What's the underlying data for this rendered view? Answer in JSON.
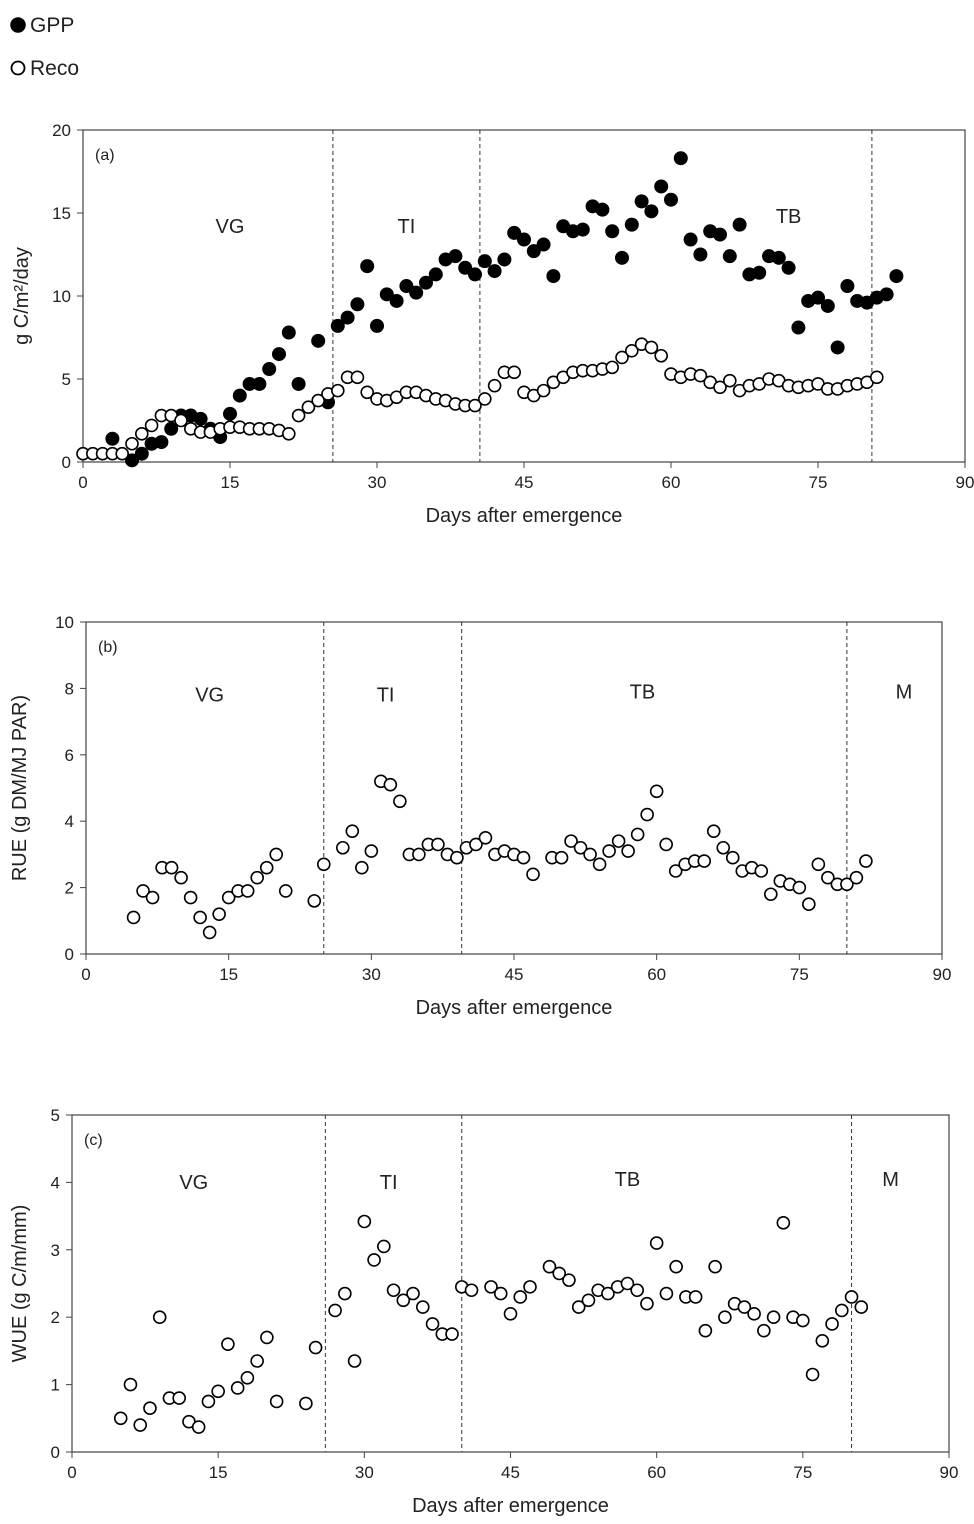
{
  "legend": {
    "items": [
      {
        "label": "GPP",
        "marker": "filled"
      },
      {
        "label": "Reco",
        "marker": "open"
      }
    ]
  },
  "colors": {
    "marker": "#000000",
    "axis": "#444444",
    "divider": "#333333"
  },
  "chart_data": [
    {
      "type": "scatter",
      "panel_tag": "(a)",
      "xlabel": "Days after emergence",
      "ylabel": "g C/m²/day",
      "xlim": [
        0,
        90
      ],
      "ylim": [
        0,
        20
      ],
      "xticks": [
        0,
        15,
        30,
        45,
        60,
        75,
        90
      ],
      "yticks": [
        0,
        5,
        10,
        15,
        20
      ],
      "grid": false,
      "legend_position": "top-left, above panel (a)",
      "phase_dividers": [
        25.5,
        40.5,
        80.5
      ],
      "phase_labels": [
        {
          "text": "VG",
          "x": 15,
          "y": 13.8
        },
        {
          "text": "TI",
          "x": 33,
          "y": 13.8
        },
        {
          "text": "TB",
          "x": 72,
          "y": 14.4
        }
      ],
      "series": [
        {
          "name": "GPP",
          "marker": "filled",
          "x": [
            3,
            5,
            6,
            7,
            8,
            9,
            10,
            11,
            12,
            13,
            14,
            15,
            16,
            17,
            18,
            19,
            20,
            21,
            22,
            24,
            25,
            26,
            27,
            28,
            29,
            30,
            31,
            32,
            33,
            34,
            35,
            36,
            37,
            38,
            39,
            40,
            41,
            42,
            43,
            44,
            45,
            46,
            47,
            48,
            49,
            50,
            51,
            52,
            53,
            54,
            55,
            56,
            57,
            58,
            59,
            60,
            61,
            62,
            63,
            64,
            65,
            66,
            67,
            68,
            69,
            70,
            71,
            72,
            73,
            74,
            75,
            76,
            77,
            78,
            79,
            80,
            81,
            82,
            83
          ],
          "y": [
            1.4,
            0.1,
            0.5,
            1.1,
            1.2,
            2.0,
            2.8,
            2.8,
            2.6,
            2.0,
            1.5,
            2.9,
            4.0,
            4.7,
            4.7,
            5.6,
            6.5,
            7.8,
            4.7,
            7.3,
            3.6,
            8.2,
            8.7,
            9.5,
            11.8,
            8.2,
            10.1,
            9.7,
            10.6,
            10.2,
            10.8,
            11.3,
            12.2,
            12.4,
            11.7,
            11.3,
            12.1,
            11.5,
            12.2,
            13.8,
            13.4,
            12.7,
            13.1,
            11.2,
            14.2,
            13.9,
            14.0,
            15.4,
            15.2,
            13.9,
            12.3,
            14.3,
            15.7,
            15.1,
            16.6,
            15.8,
            18.3,
            13.4,
            12.5,
            13.9,
            13.7,
            12.4,
            14.3,
            11.3,
            11.4,
            12.4,
            12.3,
            11.7,
            8.1,
            9.7,
            9.9,
            9.4,
            6.9,
            10.6,
            9.7,
            9.6,
            9.9,
            10.1,
            11.2
          ]
        },
        {
          "name": "Reco",
          "marker": "open",
          "x": [
            0,
            1,
            2,
            3,
            4,
            5,
            6,
            7,
            8,
            9,
            10,
            11,
            12,
            13,
            14,
            15,
            16,
            17,
            18,
            19,
            20,
            21,
            22,
            23,
            24,
            25,
            26,
            27,
            28,
            29,
            30,
            31,
            32,
            33,
            34,
            35,
            36,
            37,
            38,
            39,
            40,
            41,
            42,
            43,
            44,
            45,
            46,
            47,
            48,
            49,
            50,
            51,
            52,
            53,
            54,
            55,
            56,
            57,
            58,
            59,
            60,
            61,
            62,
            63,
            64,
            65,
            66,
            67,
            68,
            69,
            70,
            71,
            72,
            73,
            74,
            75,
            76,
            77,
            78,
            79,
            80,
            81
          ],
          "y": [
            0.5,
            0.5,
            0.5,
            0.5,
            0.5,
            1.1,
            1.7,
            2.2,
            2.8,
            2.8,
            2.5,
            2.0,
            1.8,
            1.8,
            2.0,
            2.1,
            2.1,
            2.0,
            2.0,
            2.0,
            1.9,
            1.7,
            2.8,
            3.3,
            3.7,
            4.1,
            4.3,
            5.1,
            5.1,
            4.2,
            3.8,
            3.7,
            3.9,
            4.2,
            4.2,
            4.0,
            3.8,
            3.7,
            3.5,
            3.4,
            3.4,
            3.8,
            4.6,
            5.4,
            5.4,
            4.2,
            4.0,
            4.3,
            4.8,
            5.1,
            5.4,
            5.5,
            5.5,
            5.6,
            5.7,
            6.3,
            6.7,
            7.1,
            6.9,
            6.4,
            5.3,
            5.1,
            5.3,
            5.2,
            4.8,
            4.5,
            4.9,
            4.3,
            4.6,
            4.7,
            5.0,
            4.9,
            4.6,
            4.5,
            4.6,
            4.7,
            4.4,
            4.4,
            4.6,
            4.7,
            4.8,
            5.1
          ]
        }
      ]
    },
    {
      "type": "scatter",
      "panel_tag": "(b)",
      "xlabel": "Days after emergence",
      "ylabel": "RUE (g DM/MJ PAR)",
      "xlim": [
        0,
        90
      ],
      "ylim": [
        0,
        10
      ],
      "xticks": [
        0,
        15,
        30,
        45,
        60,
        75,
        90
      ],
      "yticks": [
        0,
        2,
        4,
        6,
        8,
        10
      ],
      "grid": false,
      "phase_dividers": [
        25,
        39.5,
        80
      ],
      "phase_labels": [
        {
          "text": "VG",
          "x": 13,
          "y": 7.6
        },
        {
          "text": "TI",
          "x": 31.5,
          "y": 7.6
        },
        {
          "text": "TB",
          "x": 58.5,
          "y": 7.7
        },
        {
          "text": "M",
          "x": 86,
          "y": 7.7
        }
      ],
      "series": [
        {
          "name": "",
          "marker": "open",
          "x": [
            5,
            6,
            7,
            8,
            9,
            10,
            11,
            12,
            13,
            14,
            15,
            16,
            17,
            18,
            19,
            20,
            21,
            24,
            25,
            27,
            28,
            29,
            30,
            31,
            32,
            33,
            34,
            35,
            36,
            37,
            38,
            39,
            40,
            41,
            42,
            43,
            44,
            45,
            46,
            47,
            49,
            50,
            51,
            52,
            53,
            54,
            55,
            56,
            57,
            58,
            59,
            60,
            61,
            62,
            63,
            64,
            65,
            66,
            67,
            68,
            69,
            70,
            71,
            72,
            73,
            74,
            75,
            76,
            77,
            78,
            79,
            80,
            81,
            82
          ],
          "y": [
            1.1,
            1.9,
            1.7,
            2.6,
            2.6,
            2.3,
            1.7,
            1.1,
            0.65,
            1.2,
            1.7,
            1.9,
            1.9,
            2.3,
            2.6,
            3.0,
            1.9,
            1.6,
            2.7,
            3.2,
            3.7,
            2.6,
            3.1,
            5.2,
            5.1,
            4.6,
            3.0,
            3.0,
            3.3,
            3.3,
            3.0,
            2.9,
            3.2,
            3.3,
            3.5,
            3.0,
            3.1,
            3.0,
            2.9,
            2.4,
            2.9,
            2.9,
            3.4,
            3.2,
            3.0,
            2.7,
            3.1,
            3.4,
            3.1,
            3.6,
            4.2,
            4.9,
            3.3,
            2.5,
            2.7,
            2.8,
            2.8,
            3.7,
            3.2,
            2.9,
            2.5,
            2.6,
            2.5,
            1.8,
            2.2,
            2.1,
            2.0,
            1.5,
            2.7,
            2.3,
            2.1,
            2.1,
            2.3,
            2.8
          ]
        }
      ]
    },
    {
      "type": "scatter",
      "panel_tag": "(c)",
      "xlabel": "Days after emergence",
      "ylabel": "WUE (g C/m/mm)",
      "xlim": [
        0,
        90
      ],
      "ylim": [
        0,
        5
      ],
      "xticks": [
        0,
        15,
        30,
        45,
        60,
        75,
        90
      ],
      "yticks": [
        0,
        1,
        2,
        3,
        4,
        5
      ],
      "grid": false,
      "phase_dividers": [
        26,
        40,
        80
      ],
      "phase_labels": [
        {
          "text": "VG",
          "x": 12.5,
          "y": 3.9
        },
        {
          "text": "TI",
          "x": 32.5,
          "y": 3.9
        },
        {
          "text": "TB",
          "x": 57,
          "y": 3.95
        },
        {
          "text": "M",
          "x": 84,
          "y": 3.95
        }
      ],
      "series": [
        {
          "name": "",
          "marker": "open",
          "x": [
            5,
            6,
            7,
            8,
            9,
            10,
            11,
            12,
            13,
            14,
            15,
            16,
            17,
            18,
            19,
            20,
            21,
            24,
            25,
            27,
            28,
            29,
            30,
            31,
            32,
            33,
            34,
            35,
            36,
            37,
            38,
            39,
            40,
            41,
            43,
            44,
            45,
            46,
            47,
            49,
            50,
            51,
            52,
            53,
            54,
            55,
            56,
            57,
            58,
            59,
            60,
            61,
            62,
            63,
            64,
            65,
            66,
            67,
            68,
            69,
            70,
            71,
            72,
            73,
            74,
            75,
            76,
            77,
            78,
            79,
            80,
            81
          ],
          "y": [
            0.5,
            1.0,
            0.4,
            0.65,
            2.0,
            0.8,
            0.8,
            0.45,
            0.37,
            0.75,
            0.9,
            1.6,
            0.95,
            1.1,
            1.35,
            1.7,
            0.75,
            0.72,
            1.55,
            2.1,
            2.35,
            1.35,
            3.42,
            2.85,
            3.05,
            2.4,
            2.25,
            2.35,
            2.15,
            1.9,
            1.75,
            1.75,
            2.45,
            2.4,
            2.45,
            2.35,
            2.05,
            2.3,
            2.45,
            2.75,
            2.65,
            2.55,
            2.15,
            2.25,
            2.4,
            2.35,
            2.45,
            2.5,
            2.4,
            2.2,
            3.1,
            2.35,
            2.75,
            2.3,
            2.3,
            1.8,
            2.75,
            2.0,
            2.2,
            2.15,
            2.05,
            1.8,
            2.0,
            3.4,
            2.0,
            1.95,
            1.15,
            1.65,
            1.9,
            2.1,
            2.3,
            2.15
          ]
        }
      ]
    }
  ]
}
